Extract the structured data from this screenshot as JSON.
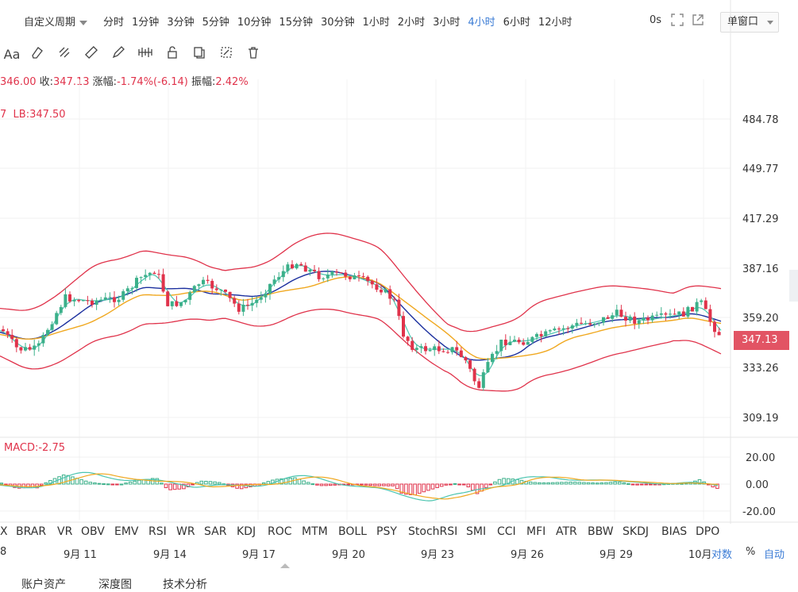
{
  "toolbar": {
    "custom_period": "自定义周期",
    "periods": [
      "分时",
      "1分钟",
      "3分钟",
      "5分钟",
      "10分钟",
      "15分钟",
      "30分钟",
      "1小时",
      "2小时",
      "3小时",
      "4小时",
      "6小时",
      "12小时"
    ],
    "active_period": "4小时",
    "countdown": "0s",
    "window_mode": "单窗口"
  },
  "draw_tools": {
    "text_tool": "Aa"
  },
  "info": {
    "open": "346.00",
    "close_label": "收:",
    "close": "347.13",
    "change_label": "涨幅:",
    "change": "-1.74%(-6.14)",
    "amp_label": "振幅:",
    "amp": "2.42%",
    "lb_prefix": "7",
    "lb": "LB:347.50"
  },
  "price_axis": {
    "ticks": [
      "484.78",
      "449.77",
      "417.29",
      "387.16",
      "359.20",
      "333.26",
      "309.19"
    ],
    "current": "347.13"
  },
  "macd": {
    "label": "MACD:-2.75",
    "ticks": [
      "20.00",
      "0.00",
      "-20.00"
    ]
  },
  "indicators": [
    "X",
    "BRAR",
    "VR",
    "OBV",
    "EMV",
    "RSI",
    "WR",
    "SAR",
    "KDJ",
    "ROC",
    "MTM",
    "BOLL",
    "PSY",
    "StochRSI",
    "SMI",
    "CCI",
    "MFI",
    "ATR",
    "BBW",
    "SKDJ",
    "BIAS",
    "DPO"
  ],
  "dates": {
    "first": "8",
    "labels": [
      "9月 11",
      "9月 14",
      "9月 17",
      "9月 20",
      "9月 23",
      "9月 26",
      "9月 29",
      "10月"
    ]
  },
  "scale": {
    "log": "对数",
    "percent": "%",
    "auto": "自动"
  },
  "bottom_tabs": [
    "账户资产",
    "深度图",
    "技术分析"
  ],
  "colors": {
    "up": "#3cb08a",
    "down": "#e0334b",
    "ma_fast": "#4cc5b0",
    "ma_slow": "#f0a820",
    "mid": "#1b2f9e",
    "accent": "#3a7bd5"
  }
}
